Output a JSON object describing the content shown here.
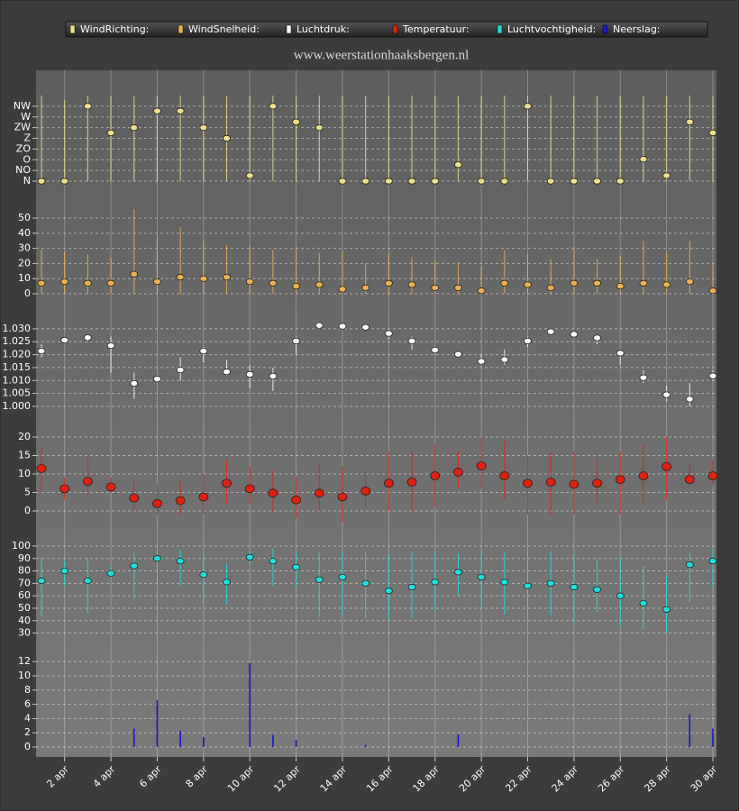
{
  "chart_data": [
    {
      "type": "range",
      "title": "www.weerstationhaaksbergen.nl",
      "series": [
        {
          "name": "WindRichting:",
          "color": "#f0e08a",
          "values": [
            0,
            0,
            315,
            203,
            225,
            295,
            295,
            225,
            180,
            23,
            315,
            249,
            225,
            0,
            0,
            0,
            0,
            0,
            69,
            0,
            0,
            315,
            0,
            0,
            0,
            0,
            92,
            23,
            249,
            203
          ],
          "low": [
            0,
            0,
            0,
            0,
            0,
            0,
            0,
            0,
            0,
            0,
            0,
            0,
            0,
            0,
            0,
            0,
            0,
            0,
            0,
            0,
            0,
            0,
            0,
            0,
            0,
            0,
            0,
            0,
            0,
            0
          ],
          "high": [
            360,
            340,
            360,
            360,
            360,
            360,
            360,
            360,
            360,
            360,
            360,
            360,
            360,
            360,
            360,
            360,
            360,
            360,
            360,
            360,
            360,
            360,
            360,
            360,
            360,
            360,
            360,
            360,
            360,
            360
          ]
        }
      ],
      "ylim": [
        0,
        360
      ],
      "yticks": [
        {
          "value": 0,
          "label": "N"
        },
        {
          "value": 45,
          "label": "NO"
        },
        {
          "value": 90,
          "label": "O"
        },
        {
          "value": 135,
          "label": "ZO"
        },
        {
          "value": 180,
          "label": "Z"
        },
        {
          "value": 225,
          "label": "ZW"
        },
        {
          "value": 270,
          "label": "W"
        },
        {
          "value": 315,
          "label": "NW"
        }
      ],
      "grid": true
    },
    {
      "type": "range",
      "series": [
        {
          "name": "WindSnelheid:",
          "color": "#f0b050",
          "values": [
            7,
            8,
            7,
            7,
            13,
            8,
            11,
            10,
            11,
            8,
            7,
            5,
            6,
            3,
            4,
            7,
            6,
            4,
            4,
            2,
            7,
            6,
            4,
            7,
            7,
            5,
            7,
            6,
            8,
            2
          ],
          "low": [
            0,
            0,
            0,
            0,
            0,
            0,
            0,
            0,
            0,
            0,
            0,
            0,
            0,
            0,
            0,
            0,
            0,
            0,
            0,
            0,
            0,
            0,
            0,
            0,
            0,
            0,
            0,
            0,
            0,
            0
          ],
          "high": [
            29,
            28,
            26,
            24,
            56,
            38,
            44,
            35,
            32,
            32,
            29,
            31,
            27,
            28,
            20,
            27,
            24,
            22,
            21,
            18,
            29,
            26,
            23,
            31,
            23,
            25,
            35,
            27,
            35,
            20
          ]
        }
      ],
      "ylim": [
        0,
        58
      ],
      "yticks": [
        0,
        10,
        20,
        30,
        40,
        50
      ],
      "grid": true
    },
    {
      "type": "range",
      "series": [
        {
          "name": "Luchtdruk:",
          "color": "#ffffff",
          "values": [
            1.0214,
            1.0256,
            1.0266,
            1.0235,
            1.0089,
            1.0106,
            1.0141,
            1.0214,
            1.0134,
            1.0124,
            1.0117,
            1.0253,
            1.0313,
            1.031,
            1.0306,
            1.0282,
            1.0253,
            1.0218,
            1.0202,
            1.0174,
            1.0181,
            1.0253,
            1.0289,
            1.0279,
            1.0265,
            1.0206,
            1.0111,
            1.0045,
            1.0028,
            1.0118
          ],
          "low": [
            1.019,
            1.025,
            1.025,
            1.013,
            1.003,
            1.01,
            1.01,
            1.017,
            1.012,
            1.007,
            1.006,
            1.02,
            1.03,
            1.03,
            1.03,
            1.026,
            1.022,
            1.02,
            1.019,
            1.016,
            1.016,
            1.023,
            1.028,
            1.027,
            1.024,
            1.016,
            1.009,
            1.002,
            1.0,
            1.01
          ],
          "high": [
            1.024,
            1.026,
            1.028,
            1.027,
            1.013,
            1.011,
            1.019,
            1.023,
            1.018,
            1.016,
            1.015,
            1.027,
            1.032,
            1.031,
            1.031,
            1.029,
            1.027,
            1.022,
            1.02,
            1.02,
            1.022,
            1.027,
            1.029,
            1.028,
            1.027,
            1.02,
            1.014,
            1.008,
            1.009,
            1.014
          ]
        }
      ],
      "ylim": [
        0.998,
        1.033
      ],
      "yticks": [
        {
          "value": 1,
          "label": "1.000"
        },
        1.005,
        {
          "value": 1.01,
          "label": "1.010"
        },
        1.015,
        {
          "value": 1.02,
          "label": "1.020"
        },
        1.025,
        {
          "value": 1.03,
          "label": "1.030"
        }
      ],
      "grid": true
    },
    {
      "type": "range",
      "series": [
        {
          "name": "Temperatuur:",
          "color": "#e02010",
          "values": [
            11.5,
            6,
            8,
            6.5,
            3.5,
            2,
            2.8,
            3.8,
            7.5,
            6,
            4.8,
            3,
            4.8,
            3.8,
            5.4,
            7.5,
            7.8,
            9.5,
            10.5,
            12.2,
            9.5,
            7.5,
            7.8,
            7.2,
            7.5,
            8.5,
            9.5,
            12,
            8.5,
            9.5
          ],
          "low": [
            5,
            3,
            4,
            5,
            0,
            -1,
            -1,
            -1,
            2,
            2,
            0,
            -2,
            0,
            -3,
            1,
            0,
            0,
            1,
            6,
            6,
            3,
            -1,
            -1,
            -1,
            2,
            -1,
            2,
            3,
            7,
            7
          ],
          "high": [
            17,
            9,
            15,
            9,
            8,
            7,
            8,
            10,
            14,
            12,
            11,
            9,
            13,
            12,
            11,
            16,
            16,
            18,
            16,
            20,
            19,
            15,
            16,
            16,
            14,
            16,
            18,
            20,
            13,
            14
          ]
        }
      ],
      "ylim": [
        -3,
        24
      ],
      "yticks": [
        0,
        5,
        10,
        15,
        20
      ],
      "grid": true
    },
    {
      "type": "range",
      "series": [
        {
          "name": "Luchtvochtigheid:",
          "color": "#20e0e0",
          "values": [
            72,
            80,
            72,
            78,
            84,
            90,
            88,
            77,
            71,
            91,
            88,
            83,
            73,
            75,
            70,
            64,
            67,
            71,
            79,
            75,
            71,
            68,
            70,
            67,
            65,
            60,
            54,
            49,
            85,
            88
          ],
          "low": [
            43,
            68,
            46,
            74,
            57,
            70,
            68,
            54,
            53,
            85,
            68,
            66,
            43,
            45,
            42,
            40,
            42,
            48,
            60,
            50,
            45,
            45,
            44,
            38,
            47,
            36,
            33,
            30,
            55,
            65
          ],
          "high": [
            90,
            88,
            90,
            84,
            95,
            97,
            97,
            94,
            86,
            96,
            98,
            96,
            95,
            96,
            95,
            93,
            95,
            96,
            94,
            97,
            95,
            96,
            96,
            94,
            89,
            91,
            84,
            76,
            95,
            97
          ]
        }
      ],
      "ylim": [
        22,
        102
      ],
      "yticks": [
        30,
        40,
        50,
        60,
        70,
        80,
        90,
        100
      ],
      "grid": true
    },
    {
      "type": "bar",
      "series": [
        {
          "name": "Neerslag:",
          "color": "#1818c8",
          "values": [
            0,
            0,
            0,
            0,
            2.6,
            6.6,
            2.3,
            1.4,
            0,
            11.8,
            1.7,
            1.0,
            0,
            0,
            0.3,
            0,
            0,
            0,
            1.8,
            0,
            0,
            0,
            0,
            0,
            0,
            0,
            0,
            0,
            4.6,
            2.6
          ]
        }
      ],
      "ylim": [
        -1.3,
        13.5
      ],
      "yticks": [
        0,
        2,
        4,
        6,
        8,
        10,
        12
      ],
      "grid": true,
      "categories": [
        null,
        "2 apr",
        null,
        "4 apr",
        null,
        "6 apr",
        null,
        "8 apr",
        null,
        "10 apr",
        null,
        "12 apr",
        null,
        "14 apr",
        null,
        "16 apr",
        null,
        "18 apr",
        null,
        "20 apr",
        null,
        "22 apr",
        null,
        "24 apr",
        null,
        "26 apr",
        null,
        "28 apr",
        null,
        "30 apr"
      ]
    }
  ]
}
